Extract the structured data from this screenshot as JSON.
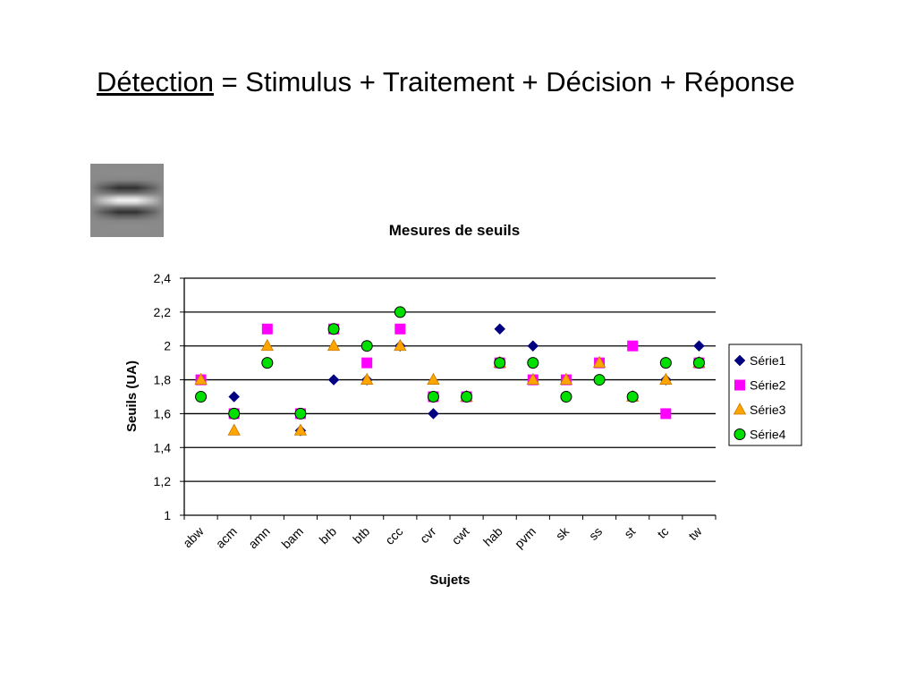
{
  "slide": {
    "title_keyword": "Détection",
    "title_rest": " = Stimulus + Traitement + Décision + Réponse"
  },
  "chart_data": {
    "type": "scatter",
    "title": "Mesures de seuils",
    "xlabel": "Sujets",
    "ylabel": "Seuils (UA)",
    "ylim": [
      1,
      2.4
    ],
    "yticks": [
      1,
      1.2,
      1.4,
      1.6,
      1.8,
      2,
      2.2,
      2.4
    ],
    "ytick_labels": [
      "1",
      "1,2",
      "1,4",
      "1,6",
      "1,8",
      "2",
      "2,2",
      "2,4"
    ],
    "grid": true,
    "legend_position": "right",
    "categories": [
      "abw",
      "acm",
      "amn",
      "bam",
      "brb",
      "btb",
      "ccc",
      "cvr",
      "cwt",
      "hab",
      "pvm",
      "sk",
      "ss",
      "st",
      "tc",
      "tw"
    ],
    "series": [
      {
        "name": "Série1",
        "marker": "diamond",
        "color": "#000080",
        "values": [
          1.8,
          1.7,
          1.9,
          1.5,
          1.8,
          1.8,
          2.0,
          1.6,
          1.7,
          2.1,
          2.0,
          1.7,
          1.8,
          1.7,
          1.8,
          2.0
        ]
      },
      {
        "name": "Série2",
        "marker": "square",
        "color": "#FF00FF",
        "values": [
          1.8,
          1.6,
          2.1,
          1.6,
          2.1,
          1.9,
          2.1,
          1.7,
          1.7,
          1.9,
          1.8,
          1.8,
          1.9,
          2.0,
          1.6,
          1.9
        ]
      },
      {
        "name": "Série3",
        "marker": "triangle",
        "color": "#FFA500",
        "values": [
          1.8,
          1.5,
          2.0,
          1.5,
          2.0,
          1.8,
          2.0,
          1.8,
          1.7,
          1.9,
          1.8,
          1.8,
          1.9,
          1.7,
          1.8,
          1.9
        ]
      },
      {
        "name": "Série4",
        "marker": "circle",
        "color": "#00E000",
        "values": [
          1.7,
          1.6,
          1.9,
          1.6,
          2.1,
          2.0,
          2.2,
          1.7,
          1.7,
          1.9,
          1.9,
          1.7,
          1.8,
          1.7,
          1.9,
          1.9
        ]
      }
    ]
  }
}
